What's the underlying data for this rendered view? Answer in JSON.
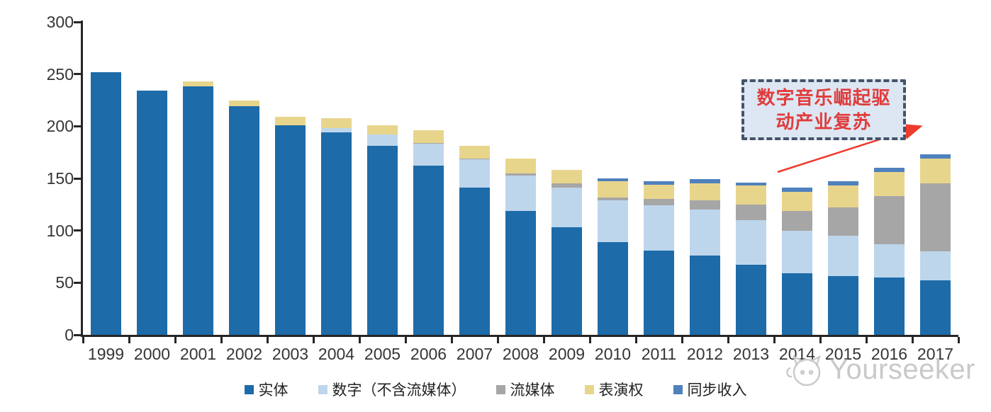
{
  "chart_data": {
    "type": "bar",
    "stacked": true,
    "x": [
      "1999",
      "2000",
      "2001",
      "2002",
      "2003",
      "2004",
      "2005",
      "2006",
      "2007",
      "2008",
      "2009",
      "2010",
      "2011",
      "2012",
      "2013",
      "2014",
      "2015",
      "2016",
      "2017"
    ],
    "series": [
      {
        "name": "实体",
        "color": "#1d6ba9",
        "values": [
          252,
          234,
          238,
          219,
          201,
          194,
          181,
          162,
          141,
          119,
          103,
          89,
          81,
          76,
          67,
          59,
          56,
          55,
          52
        ]
      },
      {
        "name": "数字（不含流媒体）",
        "color": "#bed6ec",
        "values": [
          0,
          0,
          0,
          0,
          0,
          4,
          11,
          21,
          27,
          34,
          38,
          40,
          43,
          44,
          43,
          41,
          39,
          32,
          28
        ]
      },
      {
        "name": "流媒体",
        "color": "#a6a6a6",
        "values": [
          0,
          0,
          0,
          0,
          0,
          0,
          0,
          1,
          1,
          2,
          4,
          3,
          6,
          9,
          15,
          19,
          27,
          46,
          65
        ]
      },
      {
        "name": "表演权",
        "color": "#e8d58c",
        "values": [
          0,
          0,
          5,
          6,
          8,
          10,
          9,
          12,
          12,
          14,
          13,
          15,
          14,
          16,
          18,
          18,
          21,
          23,
          24
        ]
      },
      {
        "name": "同步收入",
        "color": "#4f81bd",
        "values": [
          0,
          0,
          0,
          0,
          0,
          0,
          0,
          0,
          0,
          0,
          0,
          3,
          3,
          4,
          3,
          4,
          4,
          4,
          4
        ]
      }
    ],
    "title": "",
    "xlabel": "",
    "ylabel": "",
    "ylim": [
      0,
      300
    ],
    "yticks": [
      0,
      50,
      100,
      150,
      200,
      250,
      300
    ],
    "grid": false,
    "legend_position": "bottom",
    "axis_color": "#262626",
    "label_color": "#353535"
  },
  "annotation": {
    "line1": "数字音乐崛起驱",
    "line2": "动产业复苏",
    "text_color": "#e03c3c",
    "box_fill": "#dde7f3",
    "box_border": "#44546a",
    "arrow_color": "#ef3a2d"
  },
  "watermark": {
    "text": "Yourseeker",
    "icon": "yourseeker-logo-icon",
    "color": "#c9c9c9"
  }
}
